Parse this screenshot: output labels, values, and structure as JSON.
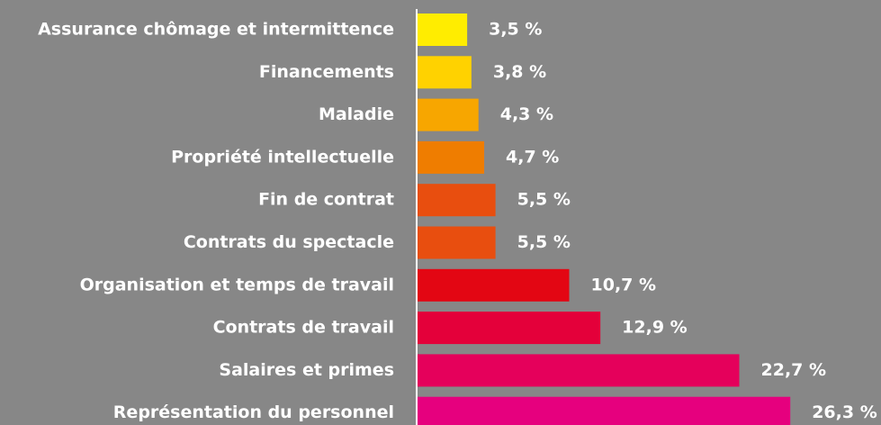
{
  "chart_data": {
    "type": "bar",
    "orientation": "horizontal",
    "categories": [
      "Assurance chômage et intermittence",
      "Financements",
      "Maladie",
      "Propriété intellectuelle",
      "Fin de contrat",
      "Contrats du spectacle",
      "Organisation et temps de travail",
      "Contrats de travail",
      "Salaires et primes",
      "Représentation du personnel"
    ],
    "values": [
      3.5,
      3.8,
      4.3,
      4.7,
      5.5,
      5.5,
      10.7,
      12.9,
      22.7,
      26.3
    ],
    "value_labels": [
      "3,5 %",
      "3,8 %",
      "4,3 %",
      "4,7 %",
      "5,5 %",
      "5,5 %",
      "10,7 %",
      "12,9 %",
      "22,7 %",
      "26,3 %"
    ],
    "colors": [
      "#ffed00",
      "#ffd200",
      "#f7a600",
      "#ef7d00",
      "#e84e0f",
      "#e84e0f",
      "#e30613",
      "#e4003a",
      "#e5005b",
      "#e6007e"
    ],
    "xlim": [
      0,
      32.7
    ]
  }
}
